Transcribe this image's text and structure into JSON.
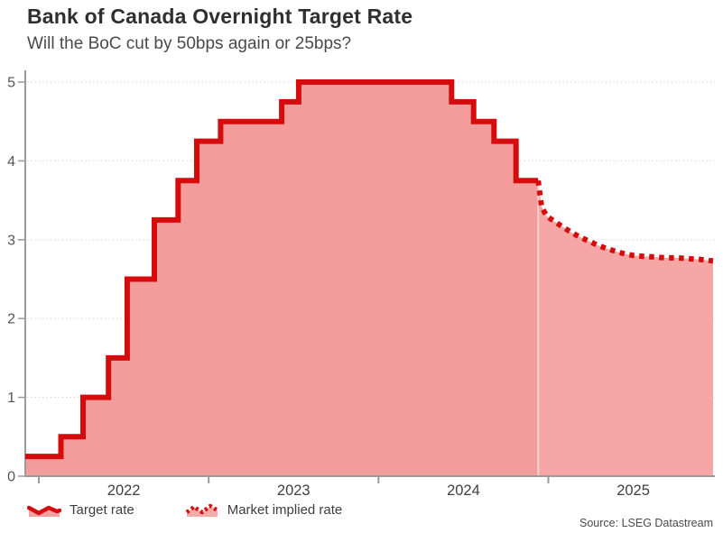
{
  "header": {
    "title": "Bank of Canada Overnight Target Rate",
    "subtitle": "Will the BoC cut by 50bps again or 25bps?"
  },
  "source": "Source: LSEG Datastream",
  "legend": [
    {
      "label": "Target rate",
      "style": "solid"
    },
    {
      "label": "Market implied rate",
      "style": "dotted"
    }
  ],
  "colors": {
    "line": "#d60b0b",
    "fill_hist": "#f49c9c",
    "fill_fore": "#f5a6a5",
    "axis": "#9a9a9a",
    "grid": "#dbdbdb",
    "tick_text": "#555555",
    "axis_text": "#3f3f3f"
  },
  "chart_data": {
    "type": "line",
    "title": "Bank of Canada Overnight Target Rate",
    "subtitle": "Will the BoC cut by 50bps again or 25bps?",
    "xlabel": "",
    "ylabel": "",
    "grid": "horizontal-dotted",
    "legend_position": "bottom-left",
    "x_axis": {
      "range": [
        2021.92,
        2025.97
      ],
      "ticks": [
        2022,
        2023,
        2024,
        2025
      ],
      "tick_labels": [
        "2022",
        "2023",
        "2024",
        "2025"
      ]
    },
    "y_axis": {
      "range": [
        0,
        5
      ],
      "ticks": [
        0,
        1,
        2,
        3,
        4,
        5
      ],
      "tick_labels": [
        "0",
        "1",
        "2",
        "3",
        "4",
        "5"
      ]
    },
    "series": [
      {
        "name": "Target rate",
        "style": "step-solid",
        "note": "points are [decimal_year_of_change, new_rate_percent]",
        "points": [
          [
            2021.92,
            0.25
          ],
          [
            2022.13,
            0.5
          ],
          [
            2022.26,
            1.0
          ],
          [
            2022.41,
            1.5
          ],
          [
            2022.52,
            2.5
          ],
          [
            2022.68,
            3.25
          ],
          [
            2022.82,
            3.75
          ],
          [
            2022.93,
            4.25
          ],
          [
            2023.07,
            4.5
          ],
          [
            2023.43,
            4.75
          ],
          [
            2023.53,
            5.0
          ],
          [
            2024.43,
            4.75
          ],
          [
            2024.56,
            4.5
          ],
          [
            2024.68,
            4.25
          ],
          [
            2024.81,
            3.75
          ],
          [
            2024.94,
            3.75
          ]
        ]
      },
      {
        "name": "Market implied rate",
        "style": "line-dotted",
        "points": [
          [
            2024.94,
            3.75
          ],
          [
            2024.96,
            3.42
          ],
          [
            2024.99,
            3.3
          ],
          [
            2025.03,
            3.24
          ],
          [
            2025.08,
            3.17
          ],
          [
            2025.13,
            3.1
          ],
          [
            2025.18,
            3.04
          ],
          [
            2025.24,
            2.98
          ],
          [
            2025.29,
            2.93
          ],
          [
            2025.34,
            2.89
          ],
          [
            2025.4,
            2.85
          ],
          [
            2025.45,
            2.82
          ],
          [
            2025.5,
            2.8
          ],
          [
            2025.56,
            2.79
          ],
          [
            2025.63,
            2.78
          ],
          [
            2025.69,
            2.77
          ],
          [
            2025.76,
            2.77
          ],
          [
            2025.82,
            2.76
          ],
          [
            2025.89,
            2.75
          ],
          [
            2025.97,
            2.73
          ]
        ]
      }
    ]
  }
}
